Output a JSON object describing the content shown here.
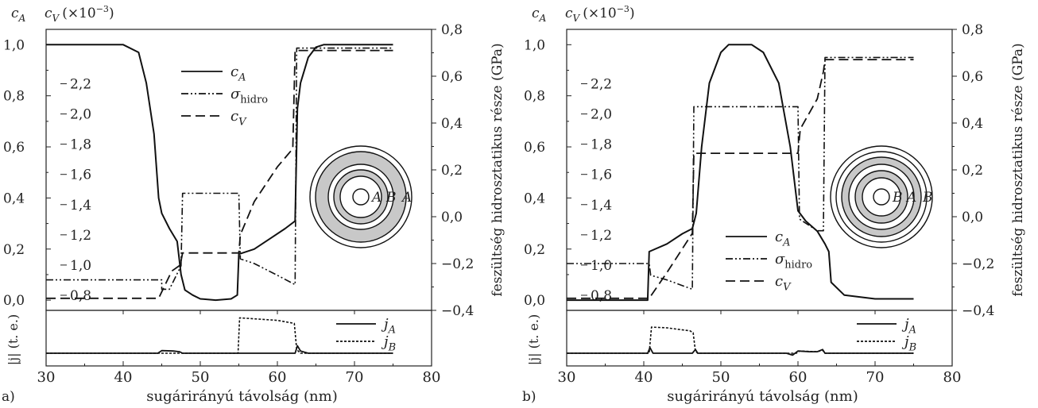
{
  "chart_data": [
    {
      "panel_label": "a)",
      "type": "line",
      "ylabel_left1": "c",
      "ylabel_left1_sub": "A",
      "ylabel_left2": "c",
      "ylabel_left2_sub": "V",
      "ylabel_left2_suffix": "(×10",
      "ylabel_left2_exp": "−3",
      "ylabel_left2_close": ")",
      "ylabel_right": "feszültség hidrosztatikus része (GPa)",
      "xlabel": "sugárirányú távolság (nm)",
      "bottom_ylabel": "|j| (t. e.)",
      "x_ticks": [
        "30",
        "40",
        "50",
        "60",
        "70",
        "80"
      ],
      "cA_ticks": [
        "0,0",
        "0,2",
        "0,4",
        "0,6",
        "0,8",
        "1,0"
      ],
      "cV_ticks": [
        "0,8",
        "1,0",
        "1,2",
        "1,4",
        "1,6",
        "1,8",
        "2,0",
        "2,2"
      ],
      "sigma_ticks": [
        "−0,4",
        "−0,2",
        "0,0",
        "0,2",
        "0,4",
        "0,6",
        "0,8"
      ],
      "xlim": [
        30,
        80
      ],
      "cA_lim": [
        -0.04,
        1.06
      ],
      "cV_lim": [
        0.7,
        2.56
      ],
      "sigma_lim": [
        -0.4,
        0.8
      ],
      "legend_top": [
        {
          "symbol": "c",
          "sub": "A",
          "style": "solid"
        },
        {
          "symbol": "σ",
          "sub": "hidro",
          "style": "dashdotdot"
        },
        {
          "symbol": "c",
          "sub": "V",
          "style": "dashed"
        }
      ],
      "legend_bottom": [
        {
          "symbol": "j",
          "sub": "A",
          "style": "solid"
        },
        {
          "symbol": "j",
          "sub": "B",
          "style": "dotted"
        }
      ],
      "inset_labels": [
        "A",
        "B",
        "A"
      ],
      "series": {
        "cA": [
          [
            30,
            1
          ],
          [
            40,
            1
          ],
          [
            42,
            0.97
          ],
          [
            43,
            0.85
          ],
          [
            44,
            0.65
          ],
          [
            44.6,
            0.4
          ],
          [
            45,
            0.34
          ],
          [
            46,
            0.28
          ],
          [
            47,
            0.23
          ],
          [
            47.5,
            0.1
          ],
          [
            48,
            0.04
          ],
          [
            49,
            0.02
          ],
          [
            50,
            0.005
          ],
          [
            52,
            0
          ],
          [
            54,
            0.005
          ],
          [
            54.8,
            0.02
          ],
          [
            55,
            0.18
          ],
          [
            57,
            0.2
          ],
          [
            59,
            0.24
          ],
          [
            61,
            0.28
          ],
          [
            62.3,
            0.31
          ],
          [
            62.6,
            0.75
          ],
          [
            63,
            0.85
          ],
          [
            64,
            0.95
          ],
          [
            65,
            0.99
          ],
          [
            66,
            1
          ],
          [
            75,
            1
          ]
        ],
        "sigma": [
          [
            30,
            -0.27
          ],
          [
            45,
            -0.27
          ],
          [
            45,
            -0.31
          ],
          [
            46,
            -0.31
          ],
          [
            47.5,
            -0.21
          ],
          [
            47.7,
            0.1
          ],
          [
            55,
            0.1
          ],
          [
            55.2,
            -0.18
          ],
          [
            57,
            -0.2
          ],
          [
            60,
            -0.25
          ],
          [
            62.3,
            -0.29
          ],
          [
            62.5,
            0.72
          ],
          [
            75,
            0.72
          ]
        ],
        "cV": [
          [
            30,
            0.78
          ],
          [
            44.6,
            0.78
          ],
          [
            46.3,
            0.96
          ],
          [
            47.4,
            1.0
          ],
          [
            47.7,
            1.08
          ],
          [
            55,
            1.08
          ],
          [
            55.2,
            1.2
          ],
          [
            57,
            1.42
          ],
          [
            60,
            1.65
          ],
          [
            62,
            1.77
          ],
          [
            62.3,
            2.42
          ],
          [
            75,
            2.42
          ]
        ],
        "jA": [
          [
            30,
            0
          ],
          [
            44.5,
            0
          ],
          [
            45,
            0.07
          ],
          [
            46.5,
            0.06
          ],
          [
            47.3,
            0.04
          ],
          [
            47.7,
            0
          ],
          [
            62.3,
            0
          ],
          [
            62.6,
            0.2
          ],
          [
            63,
            0.06
          ],
          [
            64,
            0
          ],
          [
            75,
            0
          ]
        ],
        "jB": [
          [
            30,
            0
          ],
          [
            54.9,
            0
          ],
          [
            55.1,
            0.95
          ],
          [
            60,
            0.88
          ],
          [
            62.2,
            0.8
          ],
          [
            62.5,
            0.1
          ],
          [
            63,
            0
          ],
          [
            75,
            0
          ]
        ]
      }
    },
    {
      "panel_label": "b)",
      "type": "line",
      "ylabel_left1": "c",
      "ylabel_left1_sub": "A",
      "ylabel_left2": "c",
      "ylabel_left2_sub": "V",
      "ylabel_left2_suffix": "(×10",
      "ylabel_left2_exp": "−3",
      "ylabel_left2_close": ")",
      "ylabel_right": "feszültség hidrosztatikus része (GPa)",
      "xlabel": "sugárirányú távolság (nm)",
      "bottom_ylabel": "|j| (t. e.)",
      "x_ticks": [
        "30",
        "40",
        "50",
        "60",
        "70",
        "80"
      ],
      "cA_ticks": [
        "0,0",
        "0,2",
        "0,4",
        "0,6",
        "0,8",
        "1,0"
      ],
      "cV_ticks": [
        "0,8",
        "1,0",
        "1,2",
        "1,4",
        "1,6",
        "1,8",
        "2,0",
        "2,2"
      ],
      "sigma_ticks": [
        "−0,4",
        "−0,2",
        "0,0",
        "0,2",
        "0,4",
        "0,6",
        "0,8"
      ],
      "xlim": [
        30,
        80
      ],
      "cA_lim": [
        -0.04,
        1.06
      ],
      "cV_lim": [
        0.7,
        2.56
      ],
      "sigma_lim": [
        -0.4,
        0.8
      ],
      "legend_top": [
        {
          "symbol": "c",
          "sub": "A",
          "style": "solid"
        },
        {
          "symbol": "σ",
          "sub": "hidro",
          "style": "dashdotdot"
        },
        {
          "symbol": "c",
          "sub": "V",
          "style": "dashed"
        }
      ],
      "legend_bottom": [
        {
          "symbol": "j",
          "sub": "A",
          "style": "solid"
        },
        {
          "symbol": "j",
          "sub": "B",
          "style": "dotted"
        }
      ],
      "inset_labels": [
        "B",
        "A",
        "B"
      ],
      "series": {
        "cA": [
          [
            30,
            0
          ],
          [
            40.5,
            0
          ],
          [
            40.7,
            0.19
          ],
          [
            43,
            0.22
          ],
          [
            45,
            0.26
          ],
          [
            46.3,
            0.28
          ],
          [
            46.8,
            0.34
          ],
          [
            47.5,
            0.6
          ],
          [
            48.5,
            0.85
          ],
          [
            50,
            0.97
          ],
          [
            51,
            1
          ],
          [
            54,
            1
          ],
          [
            55.5,
            0.97
          ],
          [
            57.5,
            0.85
          ],
          [
            59,
            0.6
          ],
          [
            60,
            0.35
          ],
          [
            61,
            0.31
          ],
          [
            62.5,
            0.27
          ],
          [
            63.5,
            0.22
          ],
          [
            64,
            0.19
          ],
          [
            64.3,
            0.07
          ],
          [
            66,
            0.02
          ],
          [
            70,
            0.005
          ],
          [
            75,
            0.005
          ]
        ],
        "sigma": [
          [
            30,
            -0.2
          ],
          [
            40.7,
            -0.2
          ],
          [
            40.9,
            -0.25
          ],
          [
            43,
            -0.27
          ],
          [
            46.3,
            -0.31
          ],
          [
            46.5,
            0.47
          ],
          [
            60,
            0.47
          ],
          [
            60.2,
            -0.01
          ],
          [
            62.5,
            -0.06
          ],
          [
            63.3,
            -0.06
          ],
          [
            63.5,
            0.68
          ],
          [
            75,
            0.68
          ]
        ],
        "cV": [
          [
            30,
            0.78
          ],
          [
            40.7,
            0.78
          ],
          [
            43,
            0.95
          ],
          [
            46.3,
            1.21
          ],
          [
            46.5,
            1.74
          ],
          [
            60,
            1.74
          ],
          [
            60.3,
            1.9
          ],
          [
            62.5,
            2.1
          ],
          [
            63.3,
            2.28
          ],
          [
            63.5,
            2.36
          ],
          [
            75,
            2.36
          ]
        ],
        "jA": [
          [
            30,
            0
          ],
          [
            40.5,
            0
          ],
          [
            40.8,
            0.15
          ],
          [
            41.2,
            0
          ],
          [
            46.3,
            0
          ],
          [
            46.7,
            0.1
          ],
          [
            47,
            0
          ],
          [
            58.5,
            0
          ],
          [
            59.3,
            -0.05
          ],
          [
            60,
            0.06
          ],
          [
            61.5,
            0.04
          ],
          [
            62.5,
            0.04
          ],
          [
            63.2,
            0.1
          ],
          [
            63.5,
            0
          ],
          [
            75,
            0
          ]
        ],
        "jB": [
          [
            30,
            0
          ],
          [
            40.7,
            0
          ],
          [
            41,
            0.7
          ],
          [
            43,
            0.68
          ],
          [
            46,
            0.6
          ],
          [
            46.4,
            0.55
          ],
          [
            46.7,
            0.05
          ],
          [
            47,
            0
          ],
          [
            59.8,
            0
          ],
          [
            60.2,
            0.06
          ],
          [
            62.5,
            0.04
          ],
          [
            63.2,
            0.08
          ],
          [
            63.5,
            0
          ],
          [
            75,
            0
          ]
        ]
      }
    }
  ]
}
